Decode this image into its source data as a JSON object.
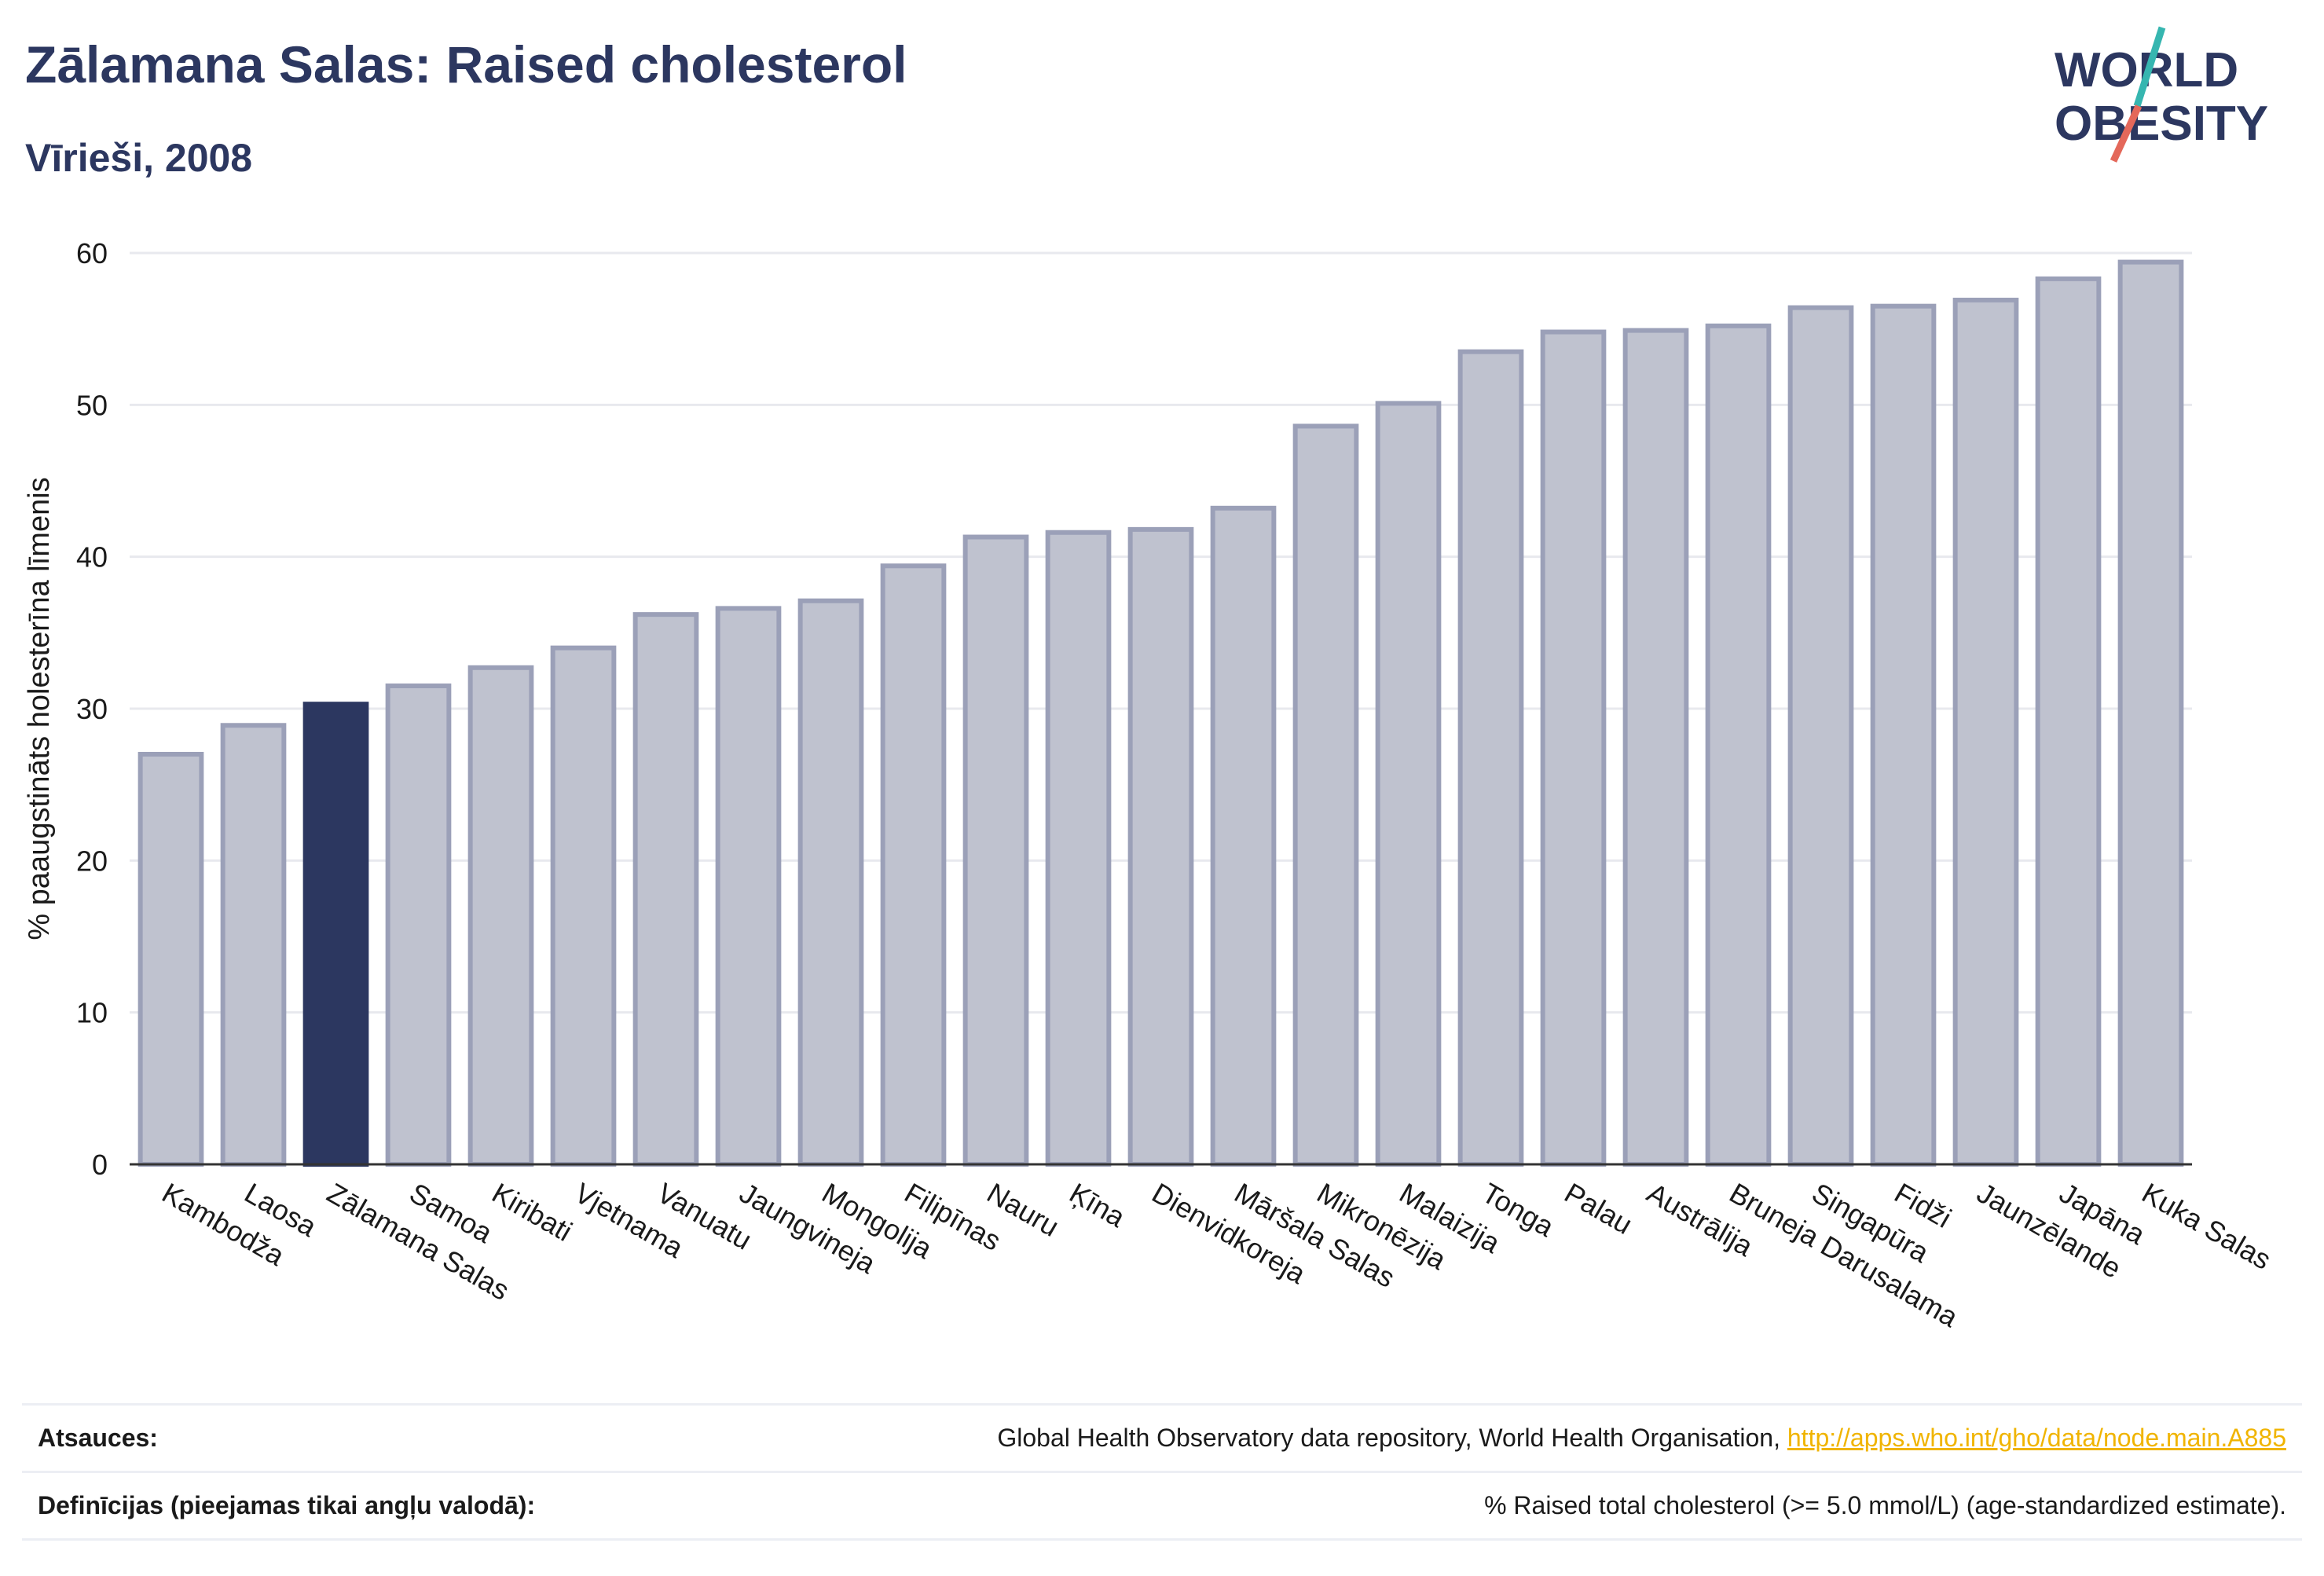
{
  "header": {
    "title": "Zālamana Salas: Raised cholesterol",
    "subtitle": "Vīrieši, 2008"
  },
  "logo": {
    "line1": "WORLD",
    "line2": "OBESITY",
    "colors": {
      "text": "#2c3760",
      "slash_teal": "#36b6b0",
      "slash_red": "#e4685a"
    }
  },
  "colors": {
    "bar": "#bfc2cf",
    "bar_border": "#9ba0b8",
    "highlight": "#2c3760",
    "grid": "#e8e9ee",
    "axis": "#333333"
  },
  "chart_data": {
    "type": "bar",
    "categories": [
      "Kambodža",
      "Laosa",
      "Zālamana Salas",
      "Samoa",
      "Kiribati",
      "Vjetnama",
      "Vanuatu",
      "Jaungvineja",
      "Mongolija",
      "Filipīnas",
      "Nauru",
      "Ķīna",
      "Dienvidkoreja",
      "Māršala Salas",
      "Mikronēzija",
      "Malaizija",
      "Tonga",
      "Palau",
      "Austrālija",
      "Bruneja Darusalama",
      "Singapūra",
      "Fidži",
      "Jaunzēlande",
      "Japāna",
      "Kuka Salas"
    ],
    "values": [
      27.0,
      28.9,
      30.3,
      31.5,
      32.7,
      34.0,
      36.2,
      36.6,
      37.1,
      39.4,
      41.3,
      41.6,
      41.8,
      43.2,
      48.6,
      50.1,
      53.5,
      54.8,
      54.9,
      55.2,
      56.4,
      56.5,
      56.9,
      58.3,
      59.4
    ],
    "highlight": "Zālamana Salas",
    "ylabel": "% paaugstināts holesterīna līmenis",
    "xlabel": "",
    "ylim": [
      0,
      60
    ],
    "yticks": [
      0,
      10,
      20,
      30,
      40,
      50,
      60
    ],
    "grid": true
  },
  "footer": {
    "sources_label": "Atsauces:",
    "sources_text": "Global Health Observatory data repository, World Health Organisation, ",
    "sources_link": "http://apps.who.int/gho/data/node.main.A885",
    "definitions_label": "Definīcijas (pieejamas tikai angļu valodā):",
    "definitions_text": "% Raised total cholesterol (>= 5.0 mmol/L) (age-standardized estimate)."
  }
}
